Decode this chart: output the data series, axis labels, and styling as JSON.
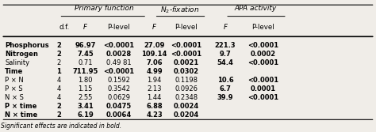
{
  "col_headers_top": [
    "Primary function",
    "N₂-fixation",
    "APA activity"
  ],
  "col_headers_sub": [
    "d.f.",
    "F",
    "P-level",
    "F",
    "P-level",
    "F",
    "P-level"
  ],
  "rows": [
    {
      "label": "Phosphorus",
      "bold_label": true,
      "values": [
        "2",
        "96.97",
        "<0.0001",
        "27.09",
        "<0.0001",
        "221.3",
        "<0.0001"
      ],
      "bold": [
        true,
        true,
        true,
        true,
        true,
        true,
        true
      ]
    },
    {
      "label": "Nitrogen",
      "bold_label": true,
      "values": [
        "2",
        "7.45",
        "0.0028",
        "109.14",
        "<0.0001",
        "9.7",
        "0.0002"
      ],
      "bold": [
        true,
        true,
        true,
        true,
        true,
        true,
        true
      ]
    },
    {
      "label": "Salinity",
      "bold_label": false,
      "values": [
        "2",
        "0.71",
        "0.49 81",
        "7.06",
        "0.0021",
        "54.4",
        "<0.0001"
      ],
      "bold": [
        false,
        false,
        false,
        true,
        true,
        true,
        true
      ]
    },
    {
      "label": "Time",
      "bold_label": true,
      "values": [
        "1",
        "711.95",
        "<0.0001",
        "4.99",
        "0.0302",
        "",
        ""
      ],
      "bold": [
        true,
        true,
        true,
        true,
        true,
        false,
        false
      ]
    },
    {
      "label": "P × N",
      "bold_label": false,
      "values": [
        "4",
        "1.80",
        "0.1592",
        "1.94",
        "0.1198",
        "10.6",
        "<0.0001"
      ],
      "bold": [
        false,
        false,
        false,
        false,
        false,
        true,
        true
      ]
    },
    {
      "label": "P × S",
      "bold_label": false,
      "values": [
        "4",
        "1.15",
        "0.3542",
        "2.13",
        "0.0926",
        "6.7",
        "0.0001"
      ],
      "bold": [
        false,
        false,
        false,
        false,
        false,
        true,
        true
      ]
    },
    {
      "label": "N × S",
      "bold_label": false,
      "values": [
        "4",
        "2.55",
        "0.0629",
        "1.44",
        "0.2348",
        "39.9",
        "<0.0001"
      ],
      "bold": [
        false,
        false,
        false,
        false,
        false,
        true,
        true
      ]
    },
    {
      "label": "P × time",
      "bold_label": true,
      "values": [
        "2",
        "3.41",
        "0.0475",
        "6.88",
        "0.0024",
        "",
        ""
      ],
      "bold": [
        true,
        true,
        true,
        true,
        true,
        false,
        false
      ]
    },
    {
      "label": "N × time",
      "bold_label": true,
      "values": [
        "2",
        "6.19",
        "0.0064",
        "4.23",
        "0.0204",
        "",
        ""
      ],
      "bold": [
        true,
        true,
        true,
        true,
        true,
        false,
        false
      ]
    }
  ],
  "footnote": "Significant effects are indicated in bold.",
  "background_color": "#f0ede8"
}
